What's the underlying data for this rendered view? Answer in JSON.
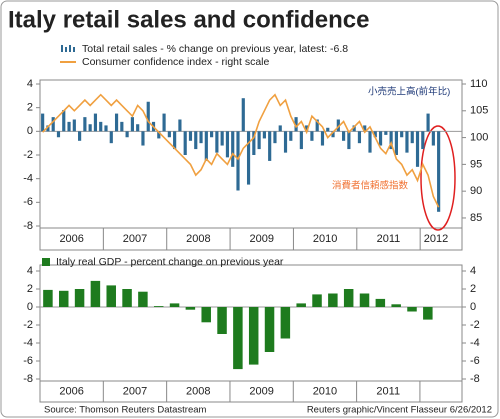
{
  "title": "Italy retail sales and confidence",
  "source": "Source: Thomson Reuters Datastream",
  "credit": "Reuters graphic/Vincent Flasseur 6/26/2012",
  "chart_data": [
    {
      "type": "bar",
      "categories": [
        null,
        null,
        null,
        null,
        null,
        null,
        "2006",
        null,
        null,
        null,
        null,
        null,
        null,
        null,
        null,
        null,
        null,
        null,
        "2007",
        null,
        null,
        null,
        null,
        null,
        null,
        null,
        null,
        null,
        null,
        null,
        "2008",
        null,
        null,
        null,
        null,
        null,
        null,
        null,
        null,
        null,
        null,
        null,
        "2009",
        null,
        null,
        null,
        null,
        null,
        null,
        null,
        null,
        null,
        null,
        null,
        "2010",
        null,
        null,
        null,
        null,
        null,
        null,
        null,
        null,
        null,
        null,
        null,
        "2011",
        null,
        null,
        null,
        null,
        null,
        null,
        null,
        null,
        "2012"
      ],
      "series": [
        {
          "name": "Total retail sales - % change on previous year, latest: -6.8",
          "color": "#2e6a94",
          "values": [
            1.5,
            0.5,
            1.2,
            -0.5,
            1.8,
            0.8,
            1.0,
            -0.8,
            1.2,
            0.6,
            1.5,
            0.8,
            0.5,
            -1.0,
            1.5,
            0.8,
            -0.5,
            1.2,
            0.6,
            -1.2,
            2.5,
            0.8,
            -0.6,
            1.5,
            -0.5,
            -1.5,
            1.0,
            -2.0,
            -0.8,
            -1.5,
            -1.0,
            -2.5,
            -0.5,
            -1.8,
            -1.2,
            -2.2,
            -3.0,
            -5.0,
            2.8,
            -4.5,
            -2.0,
            -1.5,
            -0.6,
            -2.5,
            -1.0,
            0.5,
            -1.8,
            -0.8,
            1.2,
            -1.5,
            0.5,
            -0.8,
            1.0,
            -1.2,
            0.3,
            -0.5,
            1.0,
            -0.8,
            -1.5,
            0.5,
            -1.0,
            0.5,
            -1.8,
            -0.5,
            -1.2,
            -0.3,
            -1.5,
            -2.0,
            -0.5,
            -1.8,
            -1.0,
            -3.0,
            -1.5,
            1.5,
            -1.2,
            -6.8
          ]
        },
        {
          "name": "Consumer confidence index - right scale",
          "color": "#f0a040",
          "type": "line",
          "axis": "y2",
          "values": [
            101,
            102,
            103,
            104,
            105,
            106,
            105,
            106,
            107,
            106,
            107,
            108,
            107,
            106,
            107,
            106,
            105,
            104,
            106,
            105,
            103,
            102,
            101,
            100,
            99,
            98,
            97,
            96,
            95,
            93,
            94,
            96,
            95,
            97,
            96,
            95,
            97,
            96,
            98,
            99,
            100,
            103,
            105,
            107,
            108,
            106,
            107,
            104,
            102,
            103,
            101,
            104,
            103,
            102,
            100,
            101,
            102,
            103,
            101,
            102,
            103,
            101,
            102,
            100,
            98,
            97,
            99,
            96,
            95,
            93,
            94,
            92,
            95,
            93,
            89,
            87
          ]
        }
      ],
      "ylim": [
        -8,
        4
      ],
      "yticks": [
        -8,
        -6,
        -4,
        -2,
        0,
        2,
        4
      ],
      "y2lim": [
        83.5,
        110
      ],
      "y2ticks": [
        85,
        90,
        95,
        100,
        105,
        110
      ],
      "annotations": [
        "小売売上高(前年比)",
        "消費者信頼感指数"
      ]
    },
    {
      "type": "bar",
      "categories": [
        null,
        null,
        "2006",
        null,
        null,
        null,
        "2007",
        null,
        null,
        null,
        "2008",
        null,
        null,
        null,
        "2009",
        null,
        null,
        null,
        "2010",
        null,
        null,
        null,
        "2011",
        null,
        null
      ],
      "series": [
        {
          "name": "Italy real GDP - percent change on previous year",
          "color": "#1e7b1e",
          "values": [
            1.9,
            1.8,
            2.0,
            2.9,
            2.4,
            2.0,
            1.7,
            0.1,
            0.4,
            -0.3,
            -1.7,
            -3.0,
            -6.9,
            -6.4,
            -5.0,
            -3.5,
            0.4,
            1.4,
            1.5,
            2.0,
            1.5,
            0.9,
            0.3,
            -0.5,
            -1.4
          ]
        }
      ],
      "ylim": [
        -8,
        4
      ],
      "yticks": [
        -8,
        -6,
        -4,
        -2,
        0,
        2,
        4
      ]
    }
  ]
}
